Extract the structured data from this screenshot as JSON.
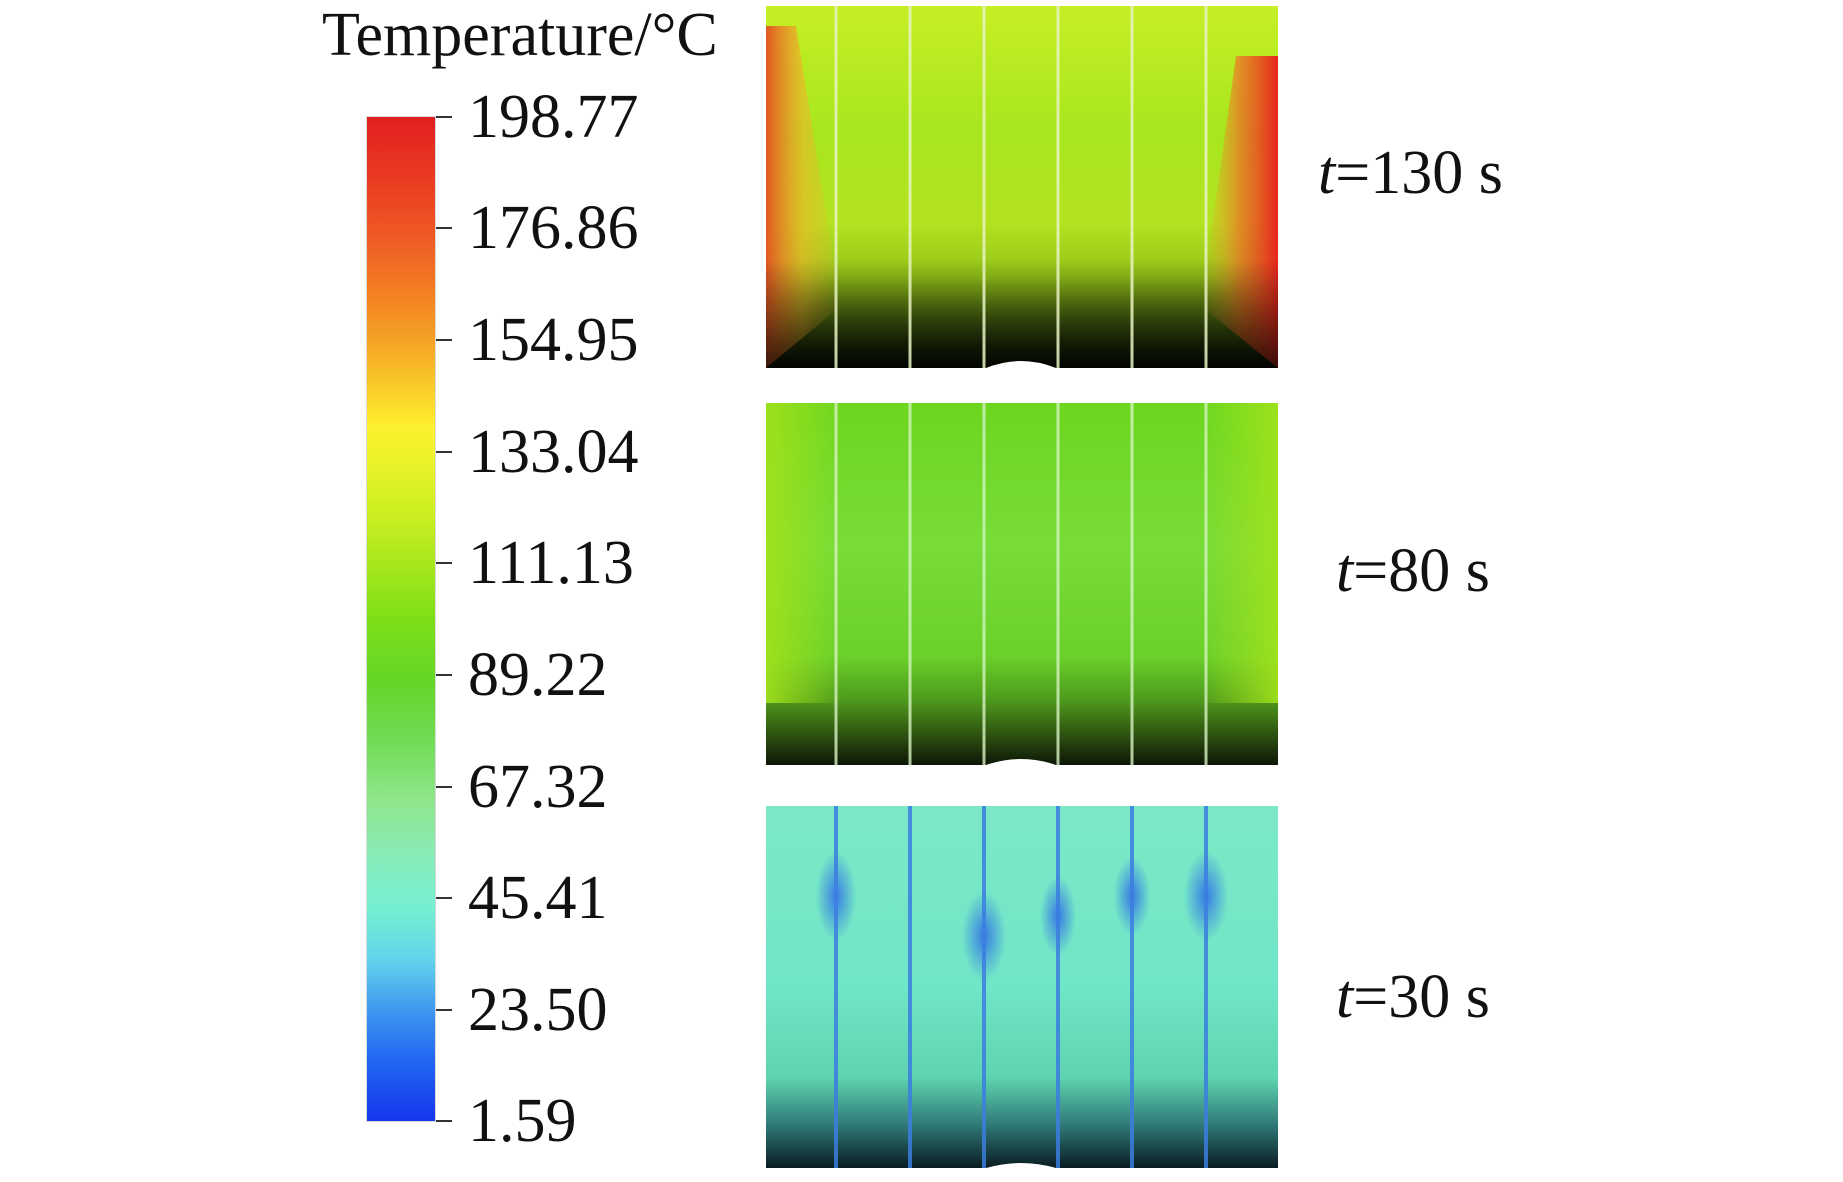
{
  "legend": {
    "title": "Temperature/°C",
    "ticks": [
      "198.77",
      "176.86",
      "154.95",
      "133.04",
      "111.13",
      "89.22",
      "67.32",
      "45.41",
      "23.50",
      "1.59"
    ]
  },
  "fields": [
    {
      "t_var": "t",
      "t_rest": "=130 s"
    },
    {
      "t_var": "t",
      "t_rest": "=80 s"
    },
    {
      "t_var": "t",
      "t_rest": "=30 s"
    }
  ]
}
